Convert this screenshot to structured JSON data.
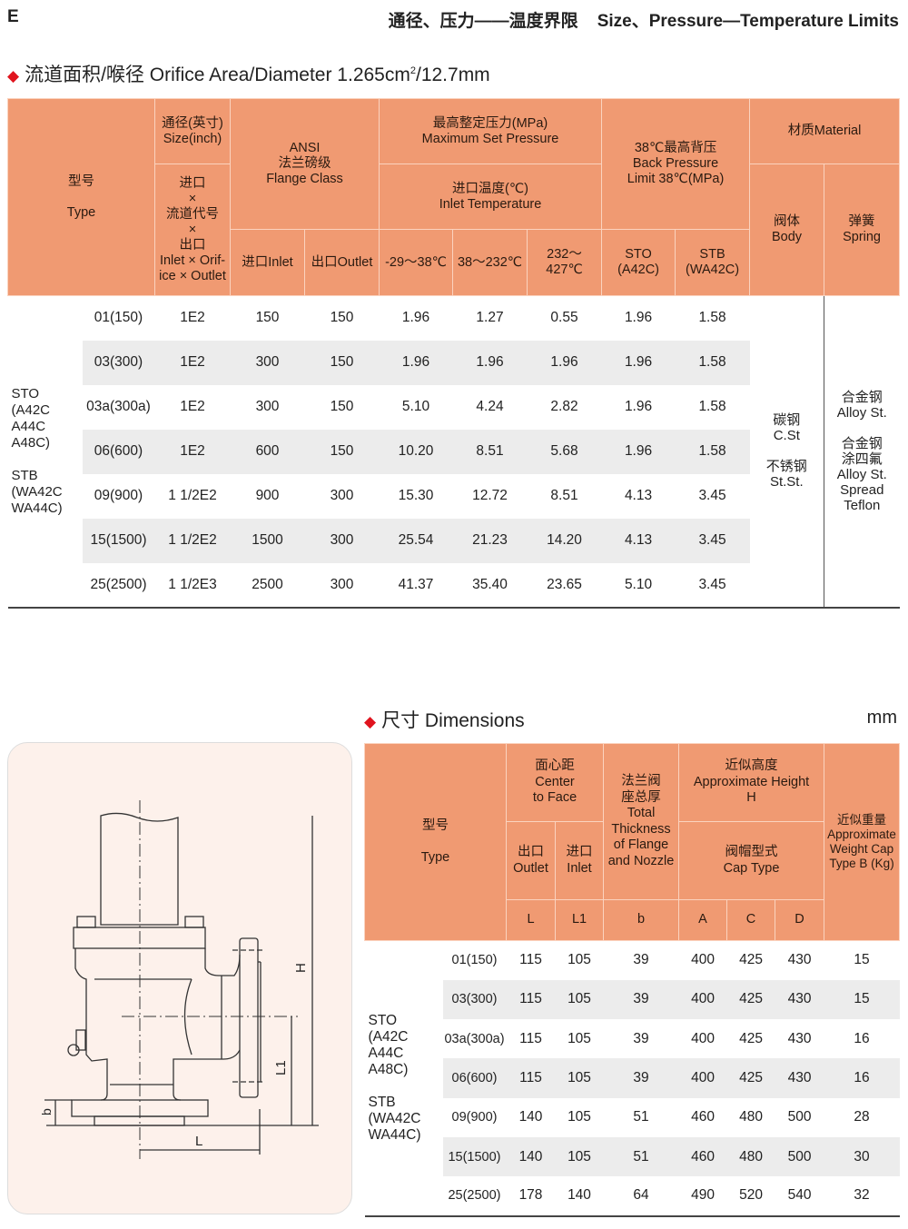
{
  "header": {
    "section": "E",
    "title": "通径、压力——温度界限    Size、Pressure—Temperature Limits"
  },
  "limits": {
    "heading_main": "流道面积/喉径 Orifice Area/Diameter 1.265cm",
    "heading_sup": "2",
    "heading_tail": "/12.7mm",
    "headers": {
      "type_cn": "型号",
      "type_en": "Type",
      "size_cn": "通径(英寸)",
      "size_en": "Size(inch)",
      "code_cn1": "进口",
      "code_x": "×",
      "code_cn2": "流道代号",
      "code_cn3": "出口",
      "code_en": "Inlet × Orif-ice × Outlet",
      "ansi": "ANSI",
      "ansi_cn": "法兰磅级",
      "ansi_en": "Flange Class",
      "inlet": "进口Inlet",
      "outlet": "出口Outlet",
      "maxp_cn": "最高整定压力(MPa)",
      "maxp_en": "Maximum Set Pressure",
      "temp_cn": "进口温度(℃)",
      "temp_en": "Inlet Temperature",
      "t1": "-29～38℃",
      "t2": "38～232℃",
      "t3": "232～427℃",
      "back_cn": "38℃最高背压",
      "back_en1": "Back Pressure",
      "back_en2": "Limit 38℃(MPa)",
      "sto": "STO",
      "sto2": "(A42C)",
      "stb": "STB",
      "stb2": "(WA42C)",
      "mat": "材质Material",
      "body_cn": "阀体",
      "body_en": "Body",
      "spring_cn": "弹簧",
      "spring_en": "Spring"
    },
    "group_label": [
      "STO",
      "(A42C",
      "A44C",
      "A48C)",
      "",
      "STB",
      "(WA42C",
      "WA44C)"
    ],
    "body_material": [
      "碳钢",
      "C.St",
      "",
      "不锈钢",
      "St.St."
    ],
    "spring_material": [
      "合金钢",
      "Alloy St.",
      "",
      "合金钢",
      "涂四氟",
      "Alloy St.",
      "Spread",
      "Teflon"
    ],
    "rows": [
      [
        "01(150)",
        "1E2",
        "150",
        "150",
        "1.96",
        "1.27",
        "0.55",
        "1.96",
        "1.58"
      ],
      [
        "03(300)",
        "1E2",
        "300",
        "150",
        "1.96",
        "1.96",
        "1.96",
        "1.96",
        "1.58"
      ],
      [
        "03a(300a)",
        "1E2",
        "300",
        "150",
        "5.10",
        "4.24",
        "2.82",
        "1.96",
        "1.58"
      ],
      [
        "06(600)",
        "1E2",
        "600",
        "150",
        "10.20",
        "8.51",
        "5.68",
        "1.96",
        "1.58"
      ],
      [
        "09(900)",
        "1 1/2E2",
        "900",
        "300",
        "15.30",
        "12.72",
        "8.51",
        "4.13",
        "3.45"
      ],
      [
        "15(1500)",
        "1 1/2E2",
        "1500",
        "300",
        "25.54",
        "21.23",
        "14.20",
        "4.13",
        "3.45"
      ],
      [
        "25(2500)",
        "1 1/2E3",
        "2500",
        "300",
        "41.37",
        "35.40",
        "23.65",
        "5.10",
        "3.45"
      ]
    ]
  },
  "dimensions": {
    "heading": "尺寸 Dimensions",
    "unit": "mm",
    "headers": {
      "type_cn": "型号",
      "type_en": "Type",
      "ctf_cn": "面心距",
      "ctf_en1": "Center",
      "ctf_en2": "to Face",
      "out_cn": "出口",
      "out_en": "Outlet",
      "in_cn": "进口",
      "in_en": "Inlet",
      "thick_cn1": "法兰阀",
      "thick_cn2": "座总厚",
      "thick_en": "Total Thickness of Flange and Nozzle",
      "h_cn": "近似高度",
      "h_en": "Approximate  Height",
      "h_sym": "H",
      "cap_cn": "阀帽型式",
      "cap_en": "Cap Type",
      "w_cn": "近似重量",
      "w_en": "Approximate Weight Cap Type B (Kg)",
      "L": "L",
      "L1": "L1",
      "b": "b",
      "A": "A",
      "C": "C",
      "D": "D"
    },
    "group_label": [
      "STO",
      "(A42C",
      "A44C",
      "A48C)",
      "",
      "STB",
      "(WA42C",
      "WA44C)"
    ],
    "rows": [
      [
        "01(150)",
        "115",
        "105",
        "39",
        "400",
        "425",
        "430",
        "15"
      ],
      [
        "03(300)",
        "115",
        "105",
        "39",
        "400",
        "425",
        "430",
        "15"
      ],
      [
        "03a(300a)",
        "115",
        "105",
        "39",
        "400",
        "425",
        "430",
        "16"
      ],
      [
        "06(600)",
        "115",
        "105",
        "39",
        "400",
        "425",
        "430",
        "16"
      ],
      [
        "09(900)",
        "140",
        "105",
        "51",
        "460",
        "480",
        "500",
        "28"
      ],
      [
        "15(1500)",
        "140",
        "105",
        "51",
        "460",
        "480",
        "500",
        "30"
      ],
      [
        "25(2500)",
        "178",
        "140",
        "64",
        "490",
        "520",
        "540",
        "32"
      ]
    ]
  },
  "diagram": {
    "labels": {
      "H": "H",
      "L1": "L1",
      "L": "L",
      "b": "b"
    }
  },
  "colors": {
    "header_fill": "#f09a72",
    "accent_diamond": "#e0141e",
    "alt_row": "#ececec"
  }
}
